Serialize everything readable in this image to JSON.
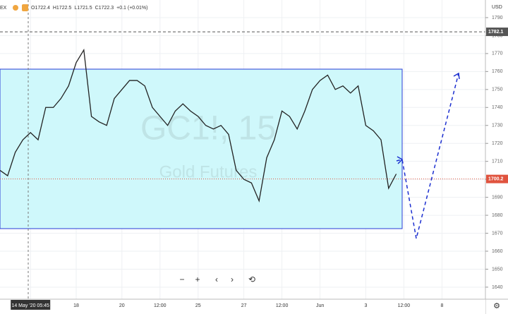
{
  "chart_data": {
    "type": "line",
    "legend": [
      "EX",
      "O1722.4",
      "H1722.5",
      "L1721.5",
      "C1722.3",
      "+0.1 (+0.01%)"
    ],
    "watermark": [
      "GC1!, 15",
      "Gold Futures"
    ],
    "currency": "USD",
    "categories": [
      null,
      null,
      null,
      null,
      "14 May '20 05:45",
      null,
      null,
      null,
      null,
      null,
      "18",
      null,
      null,
      null,
      null,
      null,
      "20",
      null,
      null,
      null,
      null,
      "12:00",
      null,
      null,
      null,
      null,
      "25",
      null,
      null,
      null,
      null,
      null,
      "27",
      null,
      null,
      null,
      null,
      "12:00",
      null,
      null,
      null,
      null,
      "Jun",
      null,
      null,
      null,
      null,
      null,
      "3",
      null,
      null,
      null,
      null,
      "12:00",
      null,
      null,
      null,
      null,
      "8",
      null
    ],
    "series": [
      {
        "name": "GC1!",
        "color": "#222222",
        "values": [
          1705,
          1702,
          1715,
          1722,
          1726,
          1722,
          1740,
          1740,
          1745,
          1752,
          1765,
          1772,
          1735,
          1732,
          1730,
          1745,
          1750,
          1755,
          1755,
          1752,
          1740,
          1735,
          1730,
          1738,
          1742,
          1738,
          1735,
          1730,
          1728,
          1730,
          1725,
          1705,
          1700,
          1698,
          1688,
          1712,
          1722,
          1738,
          1735,
          1728,
          1738,
          1750,
          1755,
          1758,
          1750,
          1752,
          1748,
          1752,
          1730,
          1727,
          1722,
          1695,
          1703,
          null,
          null,
          null,
          null,
          null,
          null,
          null
        ]
      }
    ],
    "ylim": [
      1633.3,
      1799.8
    ],
    "yticks": [
      1640,
      1650,
      1660,
      1670,
      1680,
      1690,
      1700,
      1710,
      1720,
      1730,
      1740,
      1750,
      1760,
      1770,
      1780,
      1790
    ],
    "price_lines": [
      {
        "value": 1782.1,
        "color": "#555555"
      },
      {
        "value": 1700.2,
        "color": "#e0533e"
      }
    ],
    "grid": true
  }
}
